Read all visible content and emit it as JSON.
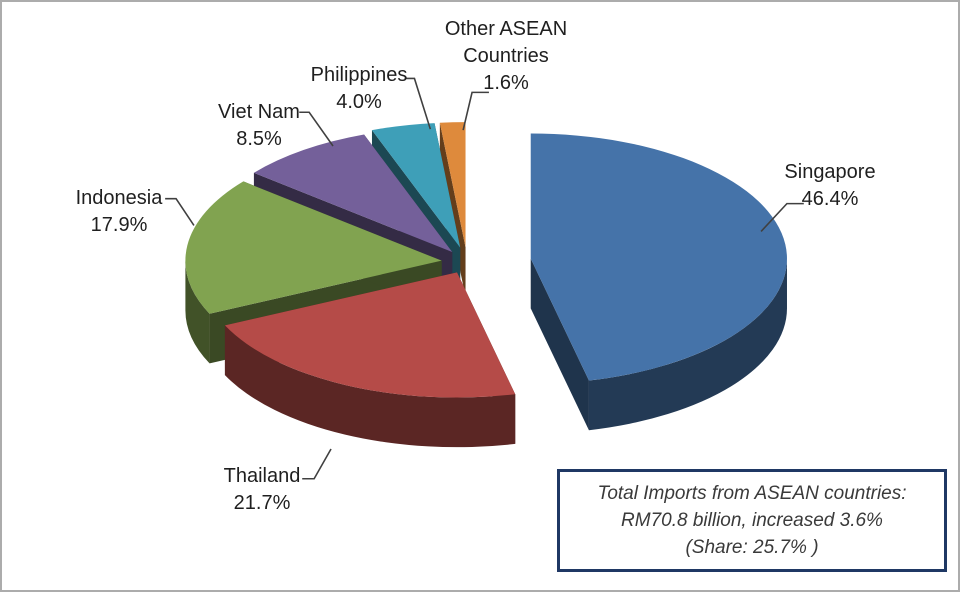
{
  "chart_data": {
    "type": "pie",
    "style": "3d-exploded",
    "title": "",
    "unit": "%",
    "legend": "none",
    "categories": [
      "Singapore",
      "Thailand",
      "Indonesia",
      "Viet Nam",
      "Philippines",
      "Other ASEAN Countries"
    ],
    "values": [
      46.4,
      21.7,
      17.9,
      8.5,
      4.0,
      1.6
    ],
    "value_labels": [
      "46.4%",
      "21.7%",
      "17.9%",
      "8.5%",
      "4.0%",
      "1.6%"
    ],
    "label_lines": [
      [
        "Singapore",
        "46.4%"
      ],
      [
        "Thailand",
        "21.7%"
      ],
      [
        "Indonesia",
        "17.9%"
      ],
      [
        "Viet Nam",
        "8.5%"
      ],
      [
        "Philippines",
        "4.0%"
      ],
      [
        "Other ASEAN",
        "Countries",
        "1.6%"
      ]
    ],
    "colors": [
      "#4573a9",
      "#b54b48",
      "#81a350",
      "#74609a",
      "#3e9fb8",
      "#de8a3c"
    ],
    "start_angle_deg": 0,
    "clockwise": true
  },
  "info_box": {
    "lines": [
      "Total Imports from ASEAN countries:",
      "RM70.8 billion, increased 3.6%",
      "(Share: 25.7% )"
    ],
    "border_color": "#1f3864"
  },
  "page": {
    "background": "#ffffff",
    "frame_border_color": "#acacac",
    "leader_line_color": "#404040"
  }
}
